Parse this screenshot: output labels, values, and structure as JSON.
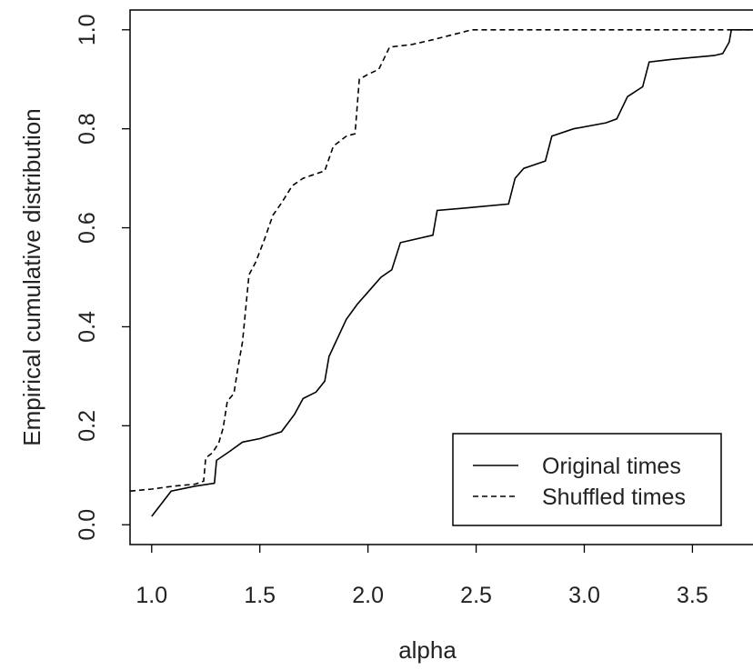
{
  "chart_data": {
    "type": "line",
    "title": "",
    "xlabel": "alpha",
    "ylabel": "Empirical cumulative distribution",
    "xlim": [
      0.9,
      3.78
    ],
    "ylim": [
      -0.04,
      1.04
    ],
    "x_ticks": [
      1.0,
      1.5,
      2.0,
      2.5,
      3.0,
      3.5
    ],
    "x_tick_labels": [
      "1.0",
      "1.5",
      "2.0",
      "2.5",
      "3.0",
      "3.5"
    ],
    "y_ticks": [
      0.0,
      0.2,
      0.4,
      0.6,
      0.8,
      1.0
    ],
    "y_tick_labels": [
      "0.0",
      "0.2",
      "0.4",
      "0.6",
      "0.8",
      "1.0"
    ],
    "grid": false,
    "legend_position": "bottom-right",
    "series": [
      {
        "name": "Original times",
        "line_style": "solid",
        "color": "#000000",
        "points": [
          [
            1.0,
            0.017
          ],
          [
            1.09,
            0.068
          ],
          [
            1.2,
            0.078
          ],
          [
            1.29,
            0.084
          ],
          [
            1.3,
            0.13
          ],
          [
            1.36,
            0.148
          ],
          [
            1.42,
            0.167
          ],
          [
            1.5,
            0.174
          ],
          [
            1.6,
            0.188
          ],
          [
            1.66,
            0.223
          ],
          [
            1.7,
            0.255
          ],
          [
            1.76,
            0.268
          ],
          [
            1.8,
            0.29
          ],
          [
            1.82,
            0.34
          ],
          [
            1.9,
            0.415
          ],
          [
            1.95,
            0.445
          ],
          [
            2.0,
            0.47
          ],
          [
            2.06,
            0.5
          ],
          [
            2.11,
            0.515
          ],
          [
            2.15,
            0.57
          ],
          [
            2.3,
            0.585
          ],
          [
            2.32,
            0.635
          ],
          [
            2.45,
            0.64
          ],
          [
            2.65,
            0.648
          ],
          [
            2.68,
            0.7
          ],
          [
            2.72,
            0.72
          ],
          [
            2.82,
            0.735
          ],
          [
            2.85,
            0.785
          ],
          [
            2.95,
            0.8
          ],
          [
            3.1,
            0.812
          ],
          [
            3.15,
            0.82
          ],
          [
            3.2,
            0.865
          ],
          [
            3.27,
            0.885
          ],
          [
            3.3,
            0.935
          ],
          [
            3.4,
            0.94
          ],
          [
            3.6,
            0.948
          ],
          [
            3.64,
            0.952
          ],
          [
            3.67,
            0.975
          ],
          [
            3.68,
            1.0
          ],
          [
            3.78,
            1.0
          ]
        ]
      },
      {
        "name": "Shuffled times",
        "line_style": "dashed",
        "color": "#000000",
        "points": [
          [
            0.9,
            0.068
          ],
          [
            1.0,
            0.072
          ],
          [
            1.1,
            0.078
          ],
          [
            1.2,
            0.082
          ],
          [
            1.24,
            0.088
          ],
          [
            1.25,
            0.135
          ],
          [
            1.28,
            0.145
          ],
          [
            1.31,
            0.165
          ],
          [
            1.33,
            0.195
          ],
          [
            1.35,
            0.25
          ],
          [
            1.38,
            0.265
          ],
          [
            1.4,
            0.32
          ],
          [
            1.42,
            0.37
          ],
          [
            1.45,
            0.505
          ],
          [
            1.48,
            0.53
          ],
          [
            1.52,
            0.575
          ],
          [
            1.56,
            0.625
          ],
          [
            1.6,
            0.65
          ],
          [
            1.65,
            0.685
          ],
          [
            1.7,
            0.7
          ],
          [
            1.8,
            0.715
          ],
          [
            1.84,
            0.765
          ],
          [
            1.9,
            0.785
          ],
          [
            1.94,
            0.79
          ],
          [
            1.96,
            0.9
          ],
          [
            2.0,
            0.91
          ],
          [
            2.05,
            0.92
          ],
          [
            2.1,
            0.965
          ],
          [
            2.2,
            0.97
          ],
          [
            2.3,
            0.98
          ],
          [
            2.48,
            1.0
          ],
          [
            3.78,
            1.0
          ]
        ]
      }
    ]
  }
}
